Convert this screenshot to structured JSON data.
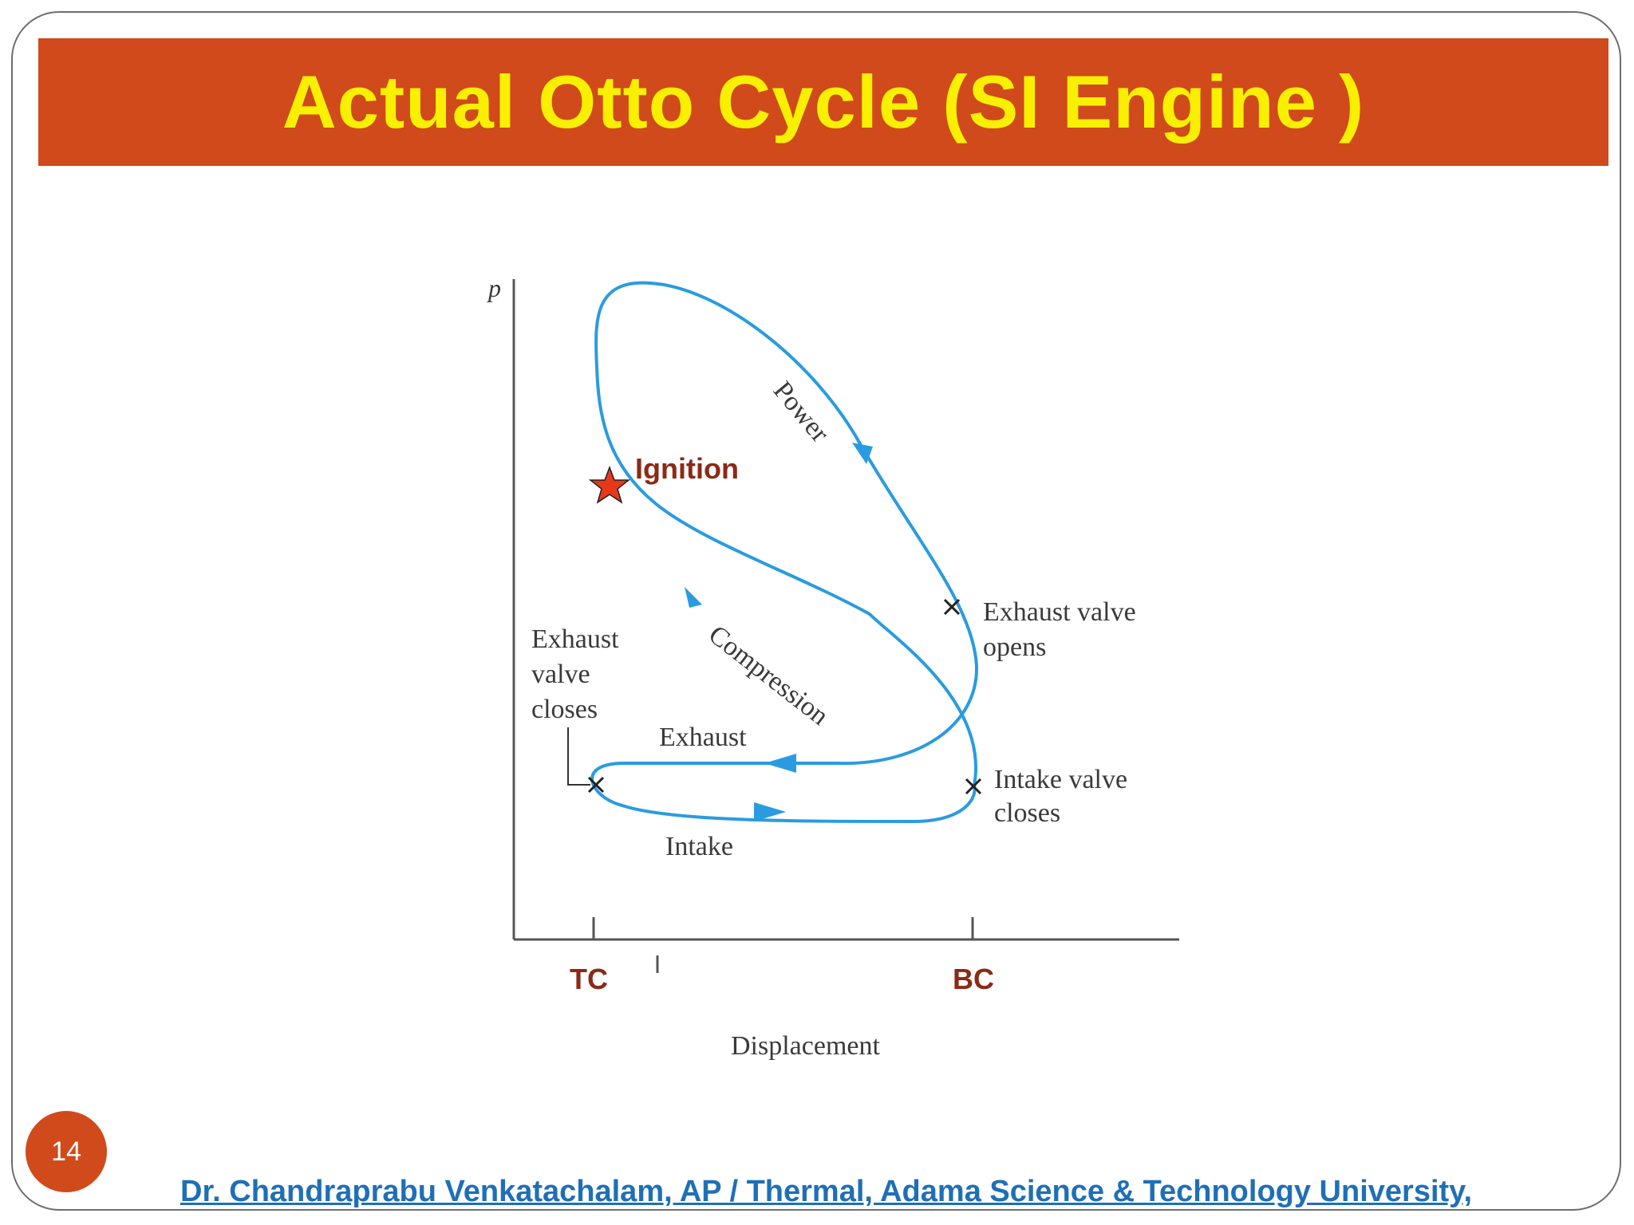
{
  "slide": {
    "title": "Actual Otto Cycle (SI Engine )",
    "page_number": "14",
    "footer": "Dr. Chandraprabu Venkatachalam, AP / Thermal, Adama Science & Technology University,"
  },
  "diagram": {
    "axis_y_label": "p",
    "axis_x_label": "Displacement",
    "tc_label": "TC",
    "bc_label": "BC",
    "ignition_label": "Ignition",
    "power_label": "Power",
    "compression_label": "Compression",
    "exhaust_label": "Exhaust",
    "intake_label": "Intake",
    "exhaust_valve_opens": [
      "Exhaust valve",
      "opens"
    ],
    "exhaust_valve_closes": [
      "Exhaust",
      "valve",
      "closes"
    ],
    "intake_valve_closes": [
      "Intake valve",
      "closes"
    ]
  },
  "colors": {
    "title_bar": "#d04a1b",
    "title_text": "#f8f000",
    "curve": "#2a9be0",
    "label_accent": "#8b2a16",
    "star": "#e8381a",
    "footer": "#1f6fb6"
  }
}
